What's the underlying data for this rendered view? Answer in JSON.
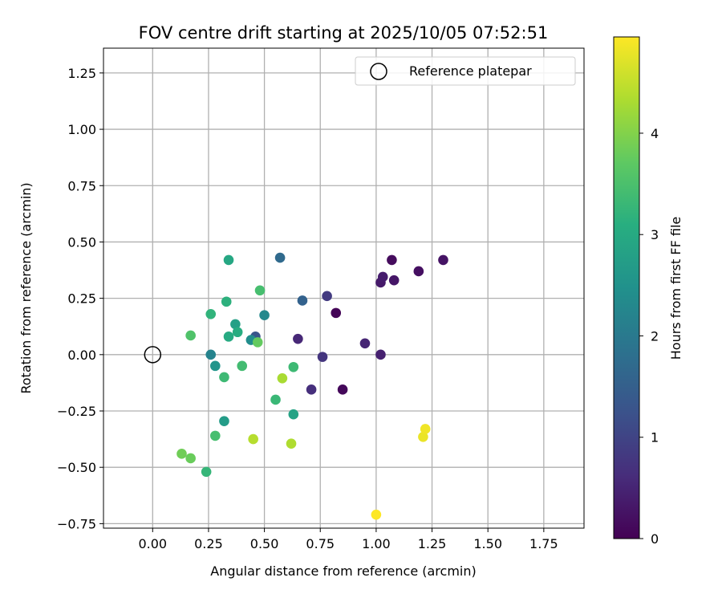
{
  "chart_data": {
    "type": "scatter",
    "title": "FOV centre drift starting at 2025/10/05 07:52:51",
    "xlabel": "Angular distance from reference (arcmin)",
    "ylabel": "Rotation from reference (arcmin)",
    "xlim": [
      -0.22,
      1.93
    ],
    "ylim": [
      -0.77,
      1.36
    ],
    "xticks": [
      0.0,
      0.25,
      0.5,
      0.75,
      1.0,
      1.25,
      1.5,
      1.75
    ],
    "xtick_labels": [
      "0.00",
      "0.25",
      "0.50",
      "0.75",
      "1.00",
      "1.25",
      "1.50",
      "1.75"
    ],
    "yticks": [
      -0.75,
      -0.5,
      -0.25,
      0.0,
      0.25,
      0.5,
      0.75,
      1.0,
      1.25
    ],
    "ytick_labels": [
      "−0.75",
      "−0.50",
      "−0.25",
      "0.00",
      "0.25",
      "0.50",
      "0.75",
      "1.00",
      "1.25"
    ],
    "grid": true,
    "legend": {
      "position": "top-right",
      "entries": [
        "Reference platepar"
      ]
    },
    "reference_point": {
      "x": 0.0,
      "y": 0.0
    },
    "colorbar": {
      "label": "Hours from first FF file",
      "min": 0,
      "max": 4.95,
      "ticks": [
        0,
        1,
        2,
        3,
        4
      ],
      "tick_labels": [
        "0",
        "1",
        "2",
        "3",
        "4"
      ],
      "colormap": "viridis"
    },
    "points": [
      {
        "x": 0.82,
        "y": 0.185,
        "c": 0.05
      },
      {
        "x": 0.85,
        "y": -0.155,
        "c": 0.1
      },
      {
        "x": 1.07,
        "y": 0.42,
        "c": 0.15
      },
      {
        "x": 1.19,
        "y": 0.37,
        "c": 0.2
      },
      {
        "x": 1.3,
        "y": 0.42,
        "c": 0.25
      },
      {
        "x": 1.08,
        "y": 0.33,
        "c": 0.3
      },
      {
        "x": 1.02,
        "y": 0.32,
        "c": 0.35
      },
      {
        "x": 1.03,
        "y": 0.345,
        "c": 0.4
      },
      {
        "x": 1.02,
        "y": 0.0,
        "c": 0.45
      },
      {
        "x": 0.95,
        "y": 0.05,
        "c": 0.5
      },
      {
        "x": 0.65,
        "y": 0.07,
        "c": 0.55
      },
      {
        "x": 0.71,
        "y": -0.155,
        "c": 0.65
      },
      {
        "x": 0.76,
        "y": -0.01,
        "c": 0.75
      },
      {
        "x": 0.78,
        "y": 0.26,
        "c": 0.85
      },
      {
        "x": 0.46,
        "y": 0.08,
        "c": 1.3
      },
      {
        "x": 0.67,
        "y": 0.24,
        "c": 1.55
      },
      {
        "x": 0.57,
        "y": 0.43,
        "c": 1.7
      },
      {
        "x": 0.26,
        "y": 0.0,
        "c": 2.2
      },
      {
        "x": 0.5,
        "y": 0.175,
        "c": 2.3
      },
      {
        "x": 0.44,
        "y": 0.065,
        "c": 2.4
      },
      {
        "x": 0.28,
        "y": -0.05,
        "c": 2.55
      },
      {
        "x": 0.32,
        "y": -0.295,
        "c": 2.7
      },
      {
        "x": 0.37,
        "y": 0.135,
        "c": 2.8
      },
      {
        "x": 0.63,
        "y": -0.265,
        "c": 2.85
      },
      {
        "x": 0.34,
        "y": 0.42,
        "c": 2.95
      },
      {
        "x": 0.34,
        "y": 0.08,
        "c": 3.0
      },
      {
        "x": 0.38,
        "y": 0.1,
        "c": 3.05
      },
      {
        "x": 0.33,
        "y": 0.235,
        "c": 3.15
      },
      {
        "x": 0.26,
        "y": 0.18,
        "c": 3.2
      },
      {
        "x": 0.24,
        "y": -0.52,
        "c": 3.25
      },
      {
        "x": 0.55,
        "y": -0.2,
        "c": 3.3
      },
      {
        "x": 0.32,
        "y": -0.1,
        "c": 3.35
      },
      {
        "x": 0.4,
        "y": -0.05,
        "c": 3.4
      },
      {
        "x": 0.28,
        "y": -0.36,
        "c": 3.45
      },
      {
        "x": 0.63,
        "y": -0.055,
        "c": 3.35
      },
      {
        "x": 0.48,
        "y": 0.285,
        "c": 3.45
      },
      {
        "x": 0.17,
        "y": 0.085,
        "c": 3.55
      },
      {
        "x": 0.47,
        "y": 0.055,
        "c": 3.75
      },
      {
        "x": 0.17,
        "y": -0.46,
        "c": 3.8
      },
      {
        "x": 0.13,
        "y": -0.44,
        "c": 3.85
      },
      {
        "x": 0.58,
        "y": -0.105,
        "c": 4.3
      },
      {
        "x": 0.62,
        "y": -0.395,
        "c": 4.35
      },
      {
        "x": 0.45,
        "y": -0.375,
        "c": 4.4
      },
      {
        "x": 1.21,
        "y": -0.365,
        "c": 4.8
      },
      {
        "x": 1.22,
        "y": -0.33,
        "c": 4.85
      },
      {
        "x": 1.0,
        "y": -0.71,
        "c": 4.95
      }
    ]
  }
}
